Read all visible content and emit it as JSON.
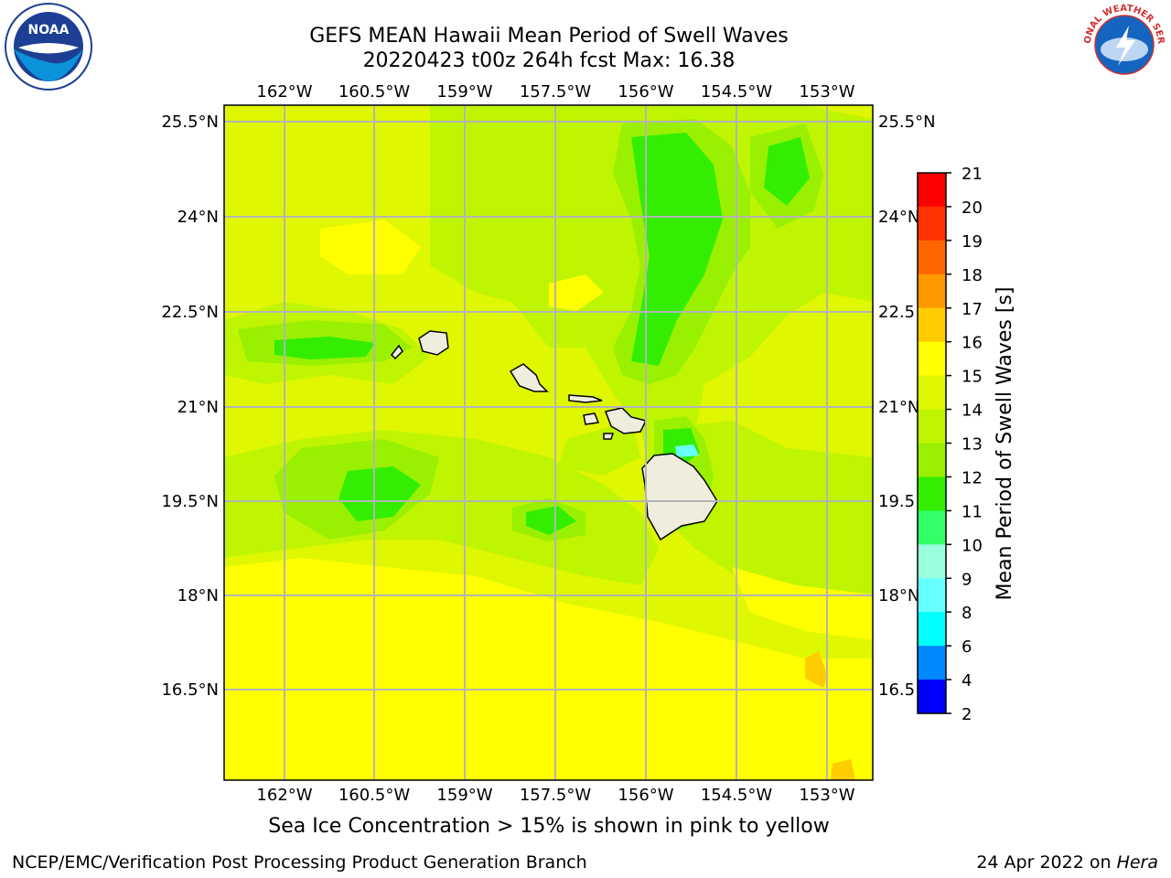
{
  "header": {
    "title_line1": "GEFS MEAN Hawaii Mean Period of Swell Waves",
    "title_line2": "20220423 t00z 264h fcst   Max: 16.38"
  },
  "logos": {
    "left": {
      "icon": "noaa-logo",
      "text": "NOAA"
    },
    "right": {
      "icon": "nws-logo",
      "text": "NATIONAL WEATHER SERVICE"
    }
  },
  "map": {
    "lon_labels": [
      "162°W",
      "160.5°W",
      "159°W",
      "157.5°W",
      "156°W",
      "154.5°W",
      "153°W"
    ],
    "lat_labels_left": [
      "25.5°N",
      "24°N",
      "22.5°N",
      "21°N",
      "19.5°N",
      "18°N",
      "16.5°N"
    ],
    "lat_labels_right": [
      "25.5°N",
      "24°N",
      "22.5",
      "21°N",
      "19.5",
      "18°N",
      "16.5"
    ],
    "colors": {
      "ocean": "#dff700",
      "land": "#efeedd",
      "grid": "#b4b4b4"
    }
  },
  "colorbar": {
    "label": "Mean Period of Swell Waves [s]",
    "ticks": [
      "21",
      "20",
      "19",
      "18",
      "17",
      "16",
      "15",
      "14",
      "13",
      "12",
      "11",
      "10",
      "9",
      "8",
      "6",
      "4",
      "2"
    ],
    "colors": [
      "#ff0000",
      "#ff3300",
      "#ff6600",
      "#ff9900",
      "#ffcc00",
      "#ffff00",
      "#dff700",
      "#bff500",
      "#99f000",
      "#33ee00",
      "#33ff66",
      "#99ffdd",
      "#66ffff",
      "#00ffff",
      "#0088ff",
      "#0000ff"
    ]
  },
  "caption": "Sea Ice Concentration > 15% is shown in pink to yellow",
  "footer": {
    "left": "NCEP/EMC/Verification Post Processing Product Generation Branch",
    "right_date": "24 Apr 2022 on ",
    "right_host": "Hera"
  }
}
